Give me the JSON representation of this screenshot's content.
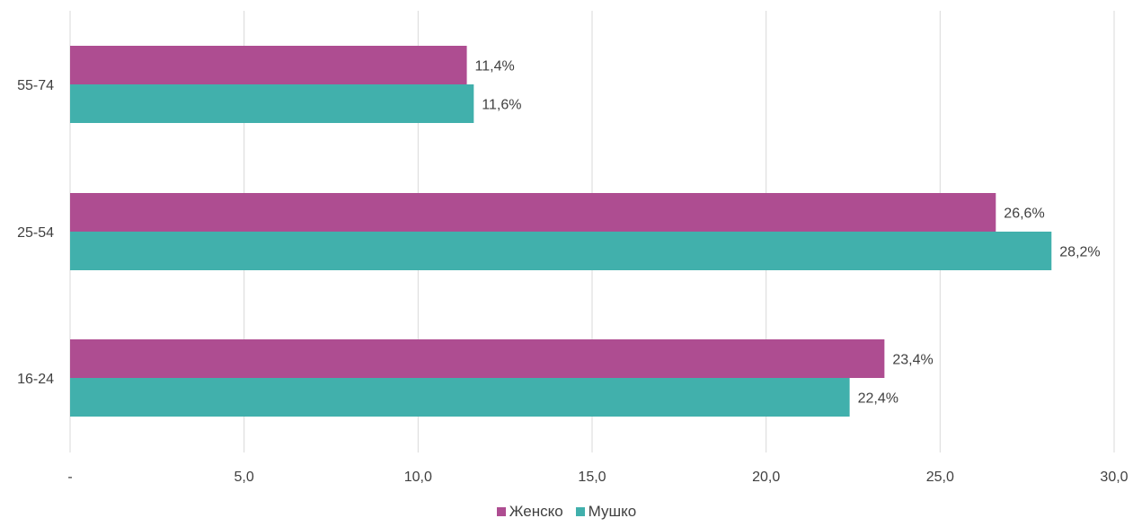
{
  "chart_data": {
    "type": "bar",
    "orientation": "horizontal",
    "categories": [
      "55-74",
      "25-54",
      "16-24"
    ],
    "series": [
      {
        "name": "Женско",
        "color": "#ae4d91",
        "values": [
          11.4,
          26.6,
          23.4
        ],
        "labels": [
          "11,4%",
          "26,6%",
          "23,4%"
        ]
      },
      {
        "name": "Мушко",
        "color": "#41b0ac",
        "values": [
          11.6,
          28.2,
          22.4
        ],
        "labels": [
          "11,6%",
          "28,2%",
          "22,4%"
        ]
      }
    ],
    "x_ticks": [
      0,
      5,
      10,
      15,
      20,
      25,
      30
    ],
    "x_tick_labels": [
      "-",
      "5,0",
      "10,0",
      "15,0",
      "20,0",
      "25,0",
      "30,0"
    ],
    "xlim": [
      0,
      30
    ],
    "grid": "vertical",
    "legend": "bottom-center",
    "title": "",
    "xlabel": "",
    "ylabel": ""
  }
}
